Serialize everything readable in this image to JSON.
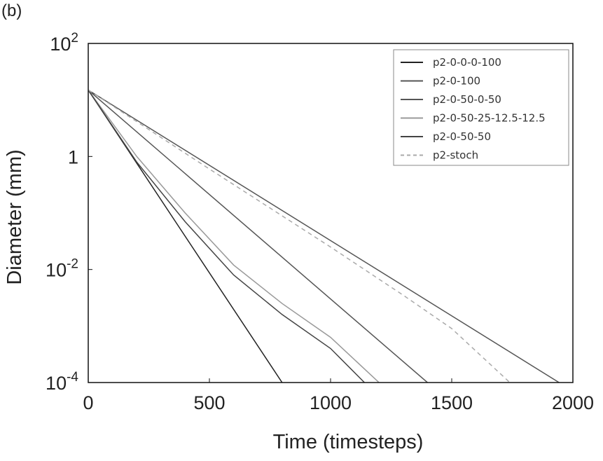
{
  "panel_label": "(b)",
  "chart_data": {
    "type": "line",
    "xlabel": "Time (timesteps)",
    "ylabel": "Diameter (mm)",
    "xlim": [
      0,
      2000
    ],
    "ylim": [
      0.0001,
      100
    ],
    "yscale": "log",
    "grid": false,
    "legend_position": "top-right",
    "x_ticks": [
      {
        "value": 0,
        "label": "0"
      },
      {
        "value": 500,
        "label": "500"
      },
      {
        "value": 1000,
        "label": "1000"
      },
      {
        "value": 1500,
        "label": "1500"
      },
      {
        "value": 2000,
        "label": "2000"
      }
    ],
    "y_ticks": [
      {
        "value": 0.0001,
        "base": "10",
        "exp": "-4"
      },
      {
        "value": 0.01,
        "base": "10",
        "exp": "-2"
      },
      {
        "value": 1,
        "base": "1",
        "exp": ""
      },
      {
        "value": 100,
        "base": "10",
        "exp": "2"
      }
    ],
    "series": [
      {
        "name": "p2-0-0-0-100",
        "color": "#222222",
        "dash": "",
        "width": 1.5,
        "points": [
          [
            0,
            15
          ],
          [
            800,
            0.0001
          ]
        ]
      },
      {
        "name": "p2-0-100",
        "color": "#555555",
        "dash": "",
        "width": 1.5,
        "points": [
          [
            0,
            15
          ],
          [
            1400,
            0.0001
          ]
        ]
      },
      {
        "name": "p2-0-50-0-50",
        "color": "#555555",
        "dash": "",
        "width": 1.5,
        "points": [
          [
            0,
            15
          ],
          [
            1943,
            0.0001
          ]
        ]
      },
      {
        "name": "p2-0-50-25-12.5-12.5",
        "color": "#999999",
        "dash": "",
        "width": 1.5,
        "points": [
          [
            0,
            15
          ],
          [
            200,
            1.0
          ],
          [
            400,
            0.1
          ],
          [
            600,
            0.012
          ],
          [
            800,
            0.0025
          ],
          [
            1000,
            0.00063
          ],
          [
            1200,
            0.0001
          ]
        ]
      },
      {
        "name": "p2-0-50-50",
        "color": "#444444",
        "dash": "",
        "width": 1.5,
        "points": [
          [
            0,
            15
          ],
          [
            200,
            0.8
          ],
          [
            400,
            0.07
          ],
          [
            600,
            0.008
          ],
          [
            800,
            0.0016
          ],
          [
            1000,
            0.0004
          ],
          [
            1140,
            0.0001
          ]
        ]
      },
      {
        "name": "p2-stoch",
        "color": "#aaaaaa",
        "dash": "6,5",
        "width": 1.5,
        "points": [
          [
            0,
            15
          ],
          [
            500,
            0.6
          ],
          [
            1000,
            0.025
          ],
          [
            1300,
            0.0035
          ],
          [
            1500,
            0.0009
          ],
          [
            1740,
            0.0001
          ]
        ]
      }
    ]
  }
}
